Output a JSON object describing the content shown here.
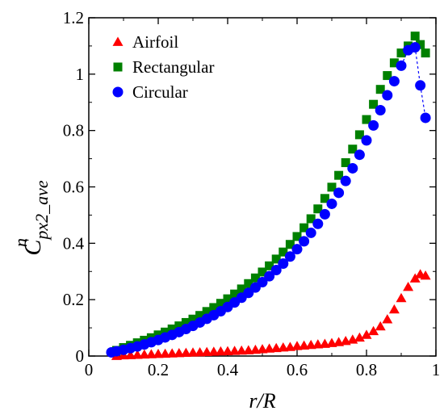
{
  "chart_data": {
    "type": "scatter",
    "title": "",
    "xlabel": "r/R",
    "ylabel": {
      "base": "C",
      "sup": "n",
      "sub": "px2_ave"
    },
    "xlim": [
      0,
      1
    ],
    "ylim": [
      0,
      1.2
    ],
    "xticks": [
      0,
      0.2,
      0.4,
      0.6,
      0.8,
      1
    ],
    "yticks": [
      0,
      0.2,
      0.4,
      0.6,
      0.8,
      1,
      1.2
    ],
    "xtick_labels": [
      "0",
      "0.2",
      "0.4",
      "0.6",
      "0.8",
      "1"
    ],
    "ytick_labels": [
      "0",
      "0.2",
      "0.4",
      "0.6",
      "0.8",
      "1",
      "1.2"
    ],
    "grid": false,
    "legend_position": "top-left",
    "series": [
      {
        "name": "Airfoil",
        "color": "#ff0000",
        "marker": "triangle",
        "x": [
          0.08,
          0.1,
          0.12,
          0.14,
          0.16,
          0.18,
          0.2,
          0.22,
          0.24,
          0.26,
          0.28,
          0.3,
          0.32,
          0.34,
          0.36,
          0.38,
          0.4,
          0.42,
          0.44,
          0.46,
          0.48,
          0.5,
          0.52,
          0.54,
          0.56,
          0.58,
          0.6,
          0.62,
          0.64,
          0.66,
          0.68,
          0.7,
          0.72,
          0.74,
          0.76,
          0.78,
          0.8,
          0.82,
          0.84,
          0.86,
          0.88,
          0.9,
          0.92,
          0.94,
          0.955,
          0.97
        ],
        "y": [
          0.0,
          0.002,
          0.003,
          0.004,
          0.005,
          0.006,
          0.007,
          0.008,
          0.009,
          0.01,
          0.011,
          0.012,
          0.013,
          0.014,
          0.015,
          0.016,
          0.017,
          0.018,
          0.019,
          0.02,
          0.022,
          0.024,
          0.026,
          0.028,
          0.03,
          0.032,
          0.035,
          0.037,
          0.039,
          0.041,
          0.043,
          0.046,
          0.049,
          0.053,
          0.058,
          0.065,
          0.075,
          0.088,
          0.105,
          0.13,
          0.165,
          0.205,
          0.245,
          0.275,
          0.29,
          0.285
        ]
      },
      {
        "name": "Rectangular",
        "color": "#008000",
        "marker": "square",
        "x": [
          0.08,
          0.1,
          0.12,
          0.14,
          0.16,
          0.18,
          0.2,
          0.22,
          0.24,
          0.26,
          0.28,
          0.3,
          0.32,
          0.34,
          0.36,
          0.38,
          0.4,
          0.42,
          0.44,
          0.46,
          0.48,
          0.5,
          0.52,
          0.54,
          0.56,
          0.58,
          0.6,
          0.62,
          0.64,
          0.66,
          0.68,
          0.7,
          0.72,
          0.74,
          0.76,
          0.78,
          0.8,
          0.82,
          0.84,
          0.86,
          0.88,
          0.9,
          0.92,
          0.94,
          0.955,
          0.97
        ],
        "y": [
          0.02,
          0.03,
          0.038,
          0.047,
          0.056,
          0.065,
          0.075,
          0.085,
          0.096,
          0.107,
          0.119,
          0.131,
          0.144,
          0.158,
          0.172,
          0.187,
          0.203,
          0.22,
          0.238,
          0.257,
          0.277,
          0.298,
          0.32,
          0.344,
          0.369,
          0.396,
          0.424,
          0.455,
          0.487,
          0.522,
          0.559,
          0.599,
          0.641,
          0.686,
          0.734,
          0.785,
          0.839,
          0.893,
          0.946,
          0.995,
          1.04,
          1.075,
          1.1,
          1.135,
          1.105,
          1.075
        ]
      },
      {
        "name": "Circular",
        "color": "#0000ff",
        "marker": "circle",
        "dashed_tail": true,
        "x": [
          0.065,
          0.08,
          0.1,
          0.12,
          0.14,
          0.16,
          0.18,
          0.2,
          0.22,
          0.24,
          0.26,
          0.28,
          0.3,
          0.32,
          0.34,
          0.36,
          0.38,
          0.4,
          0.42,
          0.44,
          0.46,
          0.48,
          0.5,
          0.52,
          0.54,
          0.56,
          0.58,
          0.6,
          0.62,
          0.64,
          0.66,
          0.68,
          0.7,
          0.72,
          0.74,
          0.76,
          0.78,
          0.8,
          0.82,
          0.84,
          0.86,
          0.88,
          0.9,
          0.92,
          0.94,
          0.955,
          0.97
        ],
        "y": [
          0.013,
          0.017,
          0.022,
          0.028,
          0.034,
          0.041,
          0.049,
          0.057,
          0.066,
          0.075,
          0.085,
          0.096,
          0.107,
          0.119,
          0.132,
          0.145,
          0.159,
          0.174,
          0.19,
          0.207,
          0.224,
          0.243,
          0.262,
          0.283,
          0.305,
          0.328,
          0.353,
          0.379,
          0.407,
          0.437,
          0.469,
          0.503,
          0.54,
          0.579,
          0.621,
          0.666,
          0.714,
          0.765,
          0.818,
          0.872,
          0.925,
          0.975,
          1.03,
          1.085,
          1.095,
          0.96,
          0.845
        ]
      }
    ]
  }
}
